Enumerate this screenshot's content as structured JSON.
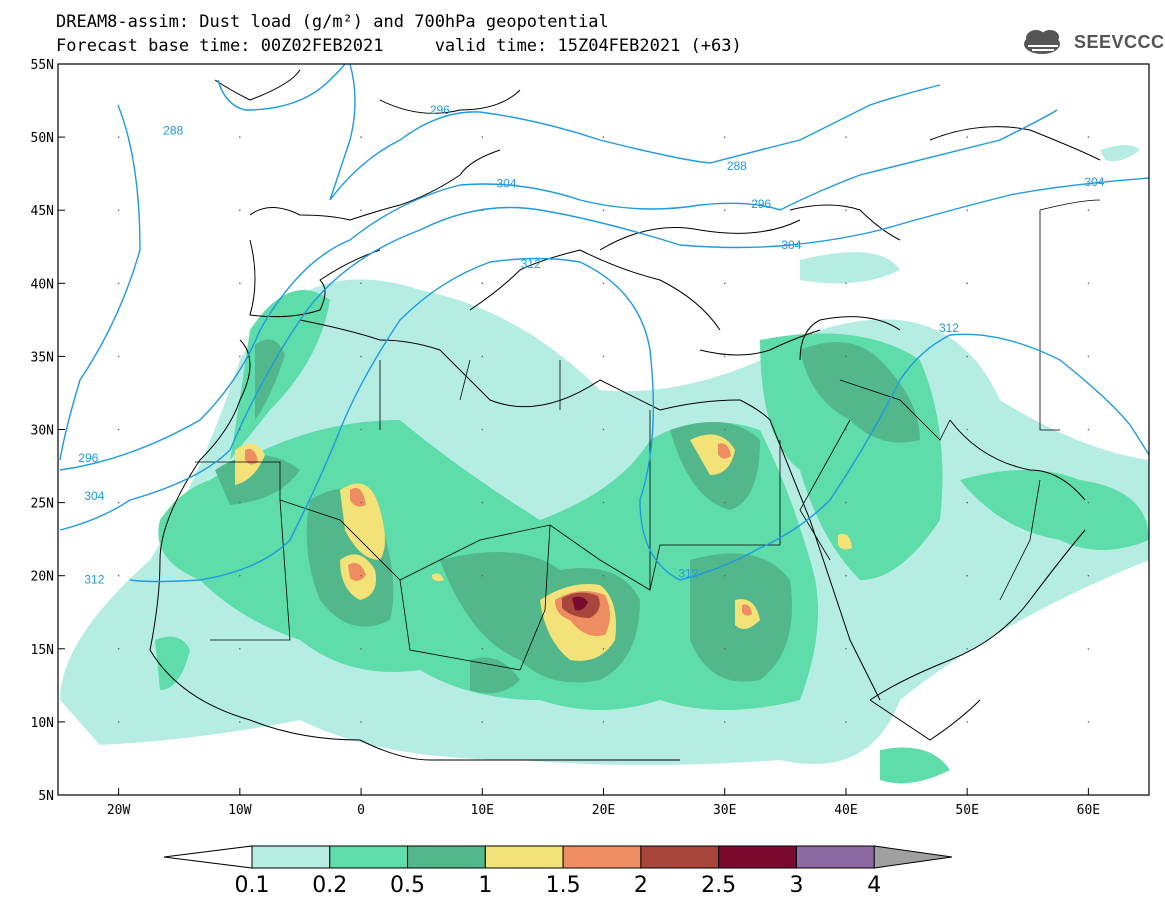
{
  "header": {
    "title_line1": "DREAM8-assim: Dust load (g/m²) and 700hPa geopotential",
    "title_line2": "Forecast base time: 00Z02FEB2021     valid time: 15Z04FEB2021 (+63)"
  },
  "logo": {
    "text": "SEEVCCC",
    "icon": "cloud-icon"
  },
  "map": {
    "lon_range": [
      -25,
      65
    ],
    "lat_range": [
      5,
      55
    ],
    "x_ticks": [
      {
        "lon": -20,
        "label": "20W"
      },
      {
        "lon": -10,
        "label": "10W"
      },
      {
        "lon": 0,
        "label": "0"
      },
      {
        "lon": 10,
        "label": "10E"
      },
      {
        "lon": 20,
        "label": "20E"
      },
      {
        "lon": 30,
        "label": "30E"
      },
      {
        "lon": 40,
        "label": "40E"
      },
      {
        "lon": 50,
        "label": "50E"
      },
      {
        "lon": 60,
        "label": "60E"
      }
    ],
    "y_ticks": [
      {
        "lat": 55,
        "label": "55N"
      },
      {
        "lat": 50,
        "label": "50N"
      },
      {
        "lat": 45,
        "label": "45N"
      },
      {
        "lat": 40,
        "label": "40N"
      },
      {
        "lat": 35,
        "label": "35N"
      },
      {
        "lat": 30,
        "label": "30N"
      },
      {
        "lat": 25,
        "label": "25N"
      },
      {
        "lat": 20,
        "label": "20N"
      },
      {
        "lat": 15,
        "label": "15N"
      },
      {
        "lat": 10,
        "label": "10N"
      },
      {
        "lat": 5,
        "label": "5N"
      }
    ],
    "contour_labels": [
      {
        "text": "288",
        "lon": -15.5,
        "lat": 50.3
      },
      {
        "text": "296",
        "lon": 6.5,
        "lat": 51.7
      },
      {
        "text": "288",
        "lon": 31,
        "lat": 47.9
      },
      {
        "text": "296",
        "lon": 33,
        "lat": 45.3
      },
      {
        "text": "304",
        "lon": 12,
        "lat": 46.7
      },
      {
        "text": "304",
        "lon": 35.5,
        "lat": 42.5
      },
      {
        "text": "304",
        "lon": 60.5,
        "lat": 46.8
      },
      {
        "text": "312",
        "lon": 14,
        "lat": 41.2
      },
      {
        "text": "312",
        "lon": 48.5,
        "lat": 36.8
      },
      {
        "text": "312",
        "lon": 27,
        "lat": 20
      },
      {
        "text": "296",
        "lon": -22.5,
        "lat": 27.9
      },
      {
        "text": "304",
        "lon": -22,
        "lat": 25.3
      },
      {
        "text": "312",
        "lon": -22,
        "lat": 19.6
      }
    ]
  },
  "colorbar": {
    "labels": [
      "0.1",
      "0.2",
      "0.5",
      "1",
      "1.5",
      "2",
      "2.5",
      "3",
      "4"
    ],
    "colors": [
      "#b6ede3",
      "#5edcaa",
      "#52b88c",
      "#f2e277",
      "#ee8c62",
      "#a8463c",
      "#7a0b2e",
      "#8d6aa3",
      "#a0a0a0"
    ]
  },
  "contour_color": "#1f9ae0"
}
